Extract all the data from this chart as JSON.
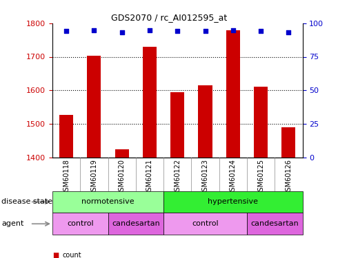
{
  "title": "GDS2070 / rc_AI012595_at",
  "samples": [
    "GSM60118",
    "GSM60119",
    "GSM60120",
    "GSM60121",
    "GSM60122",
    "GSM60123",
    "GSM60124",
    "GSM60125",
    "GSM60126"
  ],
  "counts": [
    1527,
    1703,
    1425,
    1730,
    1594,
    1614,
    1780,
    1610,
    1490
  ],
  "percentiles": [
    94,
    95,
    93,
    95,
    94,
    94,
    95,
    94,
    93
  ],
  "ylim_left": [
    1400,
    1800
  ],
  "ylim_right": [
    0,
    100
  ],
  "yticks_left": [
    1400,
    1500,
    1600,
    1700,
    1800
  ],
  "yticks_right": [
    0,
    25,
    50,
    75,
    100
  ],
  "bar_color": "#cc0000",
  "dot_color": "#0000cc",
  "norm_color": "#99ff99",
  "hyp_color": "#33ee33",
  "ctrl_color": "#ee99ee",
  "cand_color": "#dd66dd",
  "background_color": "#ffffff",
  "xticklabel_bg": "#d0d0d0"
}
